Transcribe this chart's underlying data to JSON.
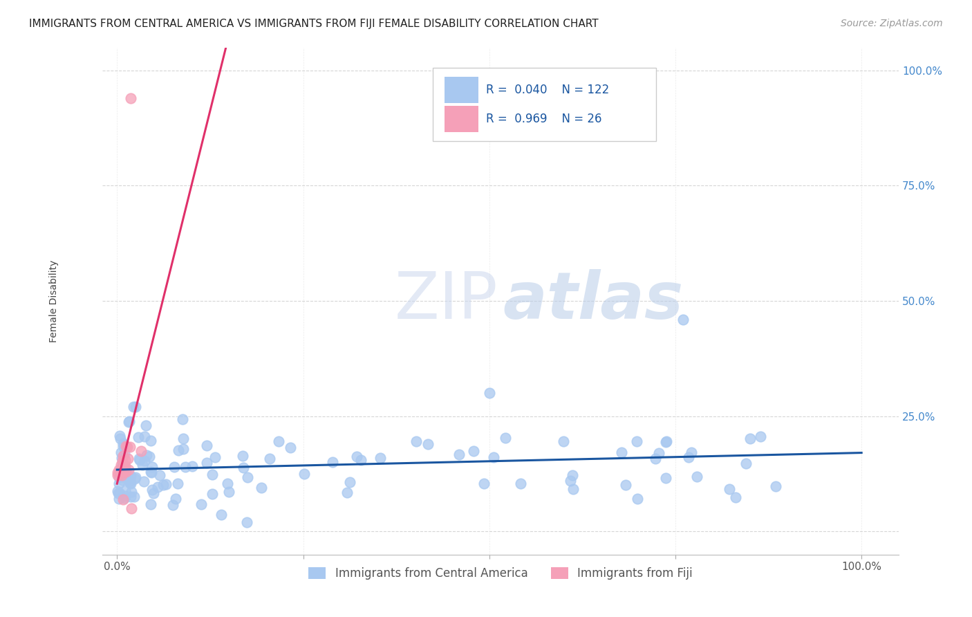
{
  "title": "IMMIGRANTS FROM CENTRAL AMERICA VS IMMIGRANTS FROM FIJI FEMALE DISABILITY CORRELATION CHART",
  "source": "Source: ZipAtlas.com",
  "ylabel": "Female Disability",
  "background_color": "#ffffff",
  "watermark_zip": "ZIP",
  "watermark_atlas": "atlas",
  "blue_R": 0.04,
  "blue_N": 122,
  "pink_R": 0.969,
  "pink_N": 26,
  "blue_color": "#a8c8f0",
  "blue_line_color": "#1a56a0",
  "pink_color": "#f5a0b8",
  "pink_line_color": "#e0306a",
  "ylim": [
    -0.05,
    1.05
  ],
  "xlim": [
    -0.02,
    1.05
  ],
  "ytick_vals": [
    0.0,
    0.25,
    0.5,
    0.75,
    1.0
  ],
  "ytick_labels": [
    "",
    "25.0%",
    "50.0%",
    "75.0%",
    "100.0%"
  ],
  "xtick_vals": [
    0.0,
    0.25,
    0.5,
    0.75,
    1.0
  ],
  "xtick_labels": [
    "0.0%",
    "",
    "",
    "",
    "100.0%"
  ],
  "legend_label_blue": "Immigrants from Central America",
  "legend_label_pink": "Immigrants from Fiji"
}
